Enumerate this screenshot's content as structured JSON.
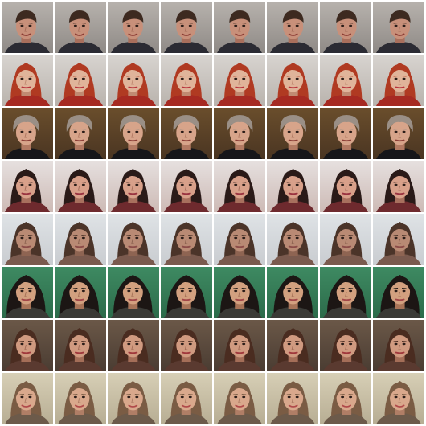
{
  "grid": {
    "rows": 8,
    "cols": 8,
    "row_styles": [
      {
        "label": "man-short-brown-hair",
        "bg_top": "#b7b2ad",
        "bg_bottom": "#8f8a86",
        "skin": "#c8907a",
        "skin_shadow": "#a96f5c",
        "hair": "#3d2a20",
        "hair_style": "short",
        "clothes": "#2b2b33",
        "mouth": "#8a3a33"
      },
      {
        "label": "woman-red-hair",
        "bg_top": "#d8d4d0",
        "bg_bottom": "#b9b3ad",
        "skin": "#e0b49a",
        "skin_shadow": "#c08a72",
        "hair": "#b03a22",
        "hair_style": "long",
        "clothes": "#a62a22",
        "mouth": "#b8343c"
      },
      {
        "label": "man-gray-hair-suit",
        "bg_top": "#6a4e2c",
        "bg_bottom": "#4a3522",
        "skin": "#d7a48a",
        "skin_shadow": "#b27a63",
        "hair": "#9a8f86",
        "hair_style": "bushy",
        "clothes": "#16161a",
        "mouth": "#8c3e36"
      },
      {
        "label": "woman-dark-hair-light-bg",
        "bg_top": "#e6e0df",
        "bg_bottom": "#cdbab5",
        "skin": "#d8a08a",
        "skin_shadow": "#a8705e",
        "hair": "#2a1a18",
        "hair_style": "side",
        "clothes": "#6e2a2e",
        "mouth": "#9a3340"
      },
      {
        "label": "woman-brown-hair-pale-bg",
        "bg_top": "#dfe3e6",
        "bg_bottom": "#c9ccd0",
        "skin": "#b98a74",
        "skin_shadow": "#8e6452",
        "hair": "#4b3429",
        "hair_style": "long",
        "clothes": "#7a5a4e",
        "mouth": "#8c4c48"
      },
      {
        "label": "woman-black-hair-green-bg",
        "bg_top": "#3e8a62",
        "bg_bottom": "#2c6b4a",
        "skin": "#d2a07f",
        "skin_shadow": "#a87458",
        "hair": "#1c1614",
        "hair_style": "voluminous",
        "clothes": "#3a3a36",
        "mouth": "#a24648"
      },
      {
        "label": "woman-brown-hair-dark-bg",
        "bg_top": "#6b5848",
        "bg_bottom": "#4a3c32",
        "skin": "#d09a80",
        "skin_shadow": "#a46e58",
        "hair": "#4a2c20",
        "hair_style": "long",
        "clothes": "#5a3a30",
        "mouth": "#a0383c"
      },
      {
        "label": "woman-smiling-light-hair",
        "bg_top": "#d7cfb6",
        "bg_bottom": "#b7ad93",
        "skin": "#d9a88c",
        "skin_shadow": "#b07e66",
        "hair": "#7a5c44",
        "hair_style": "long",
        "clothes": "#6c5a4a",
        "mouth": "#b04a4a"
      }
    ]
  }
}
